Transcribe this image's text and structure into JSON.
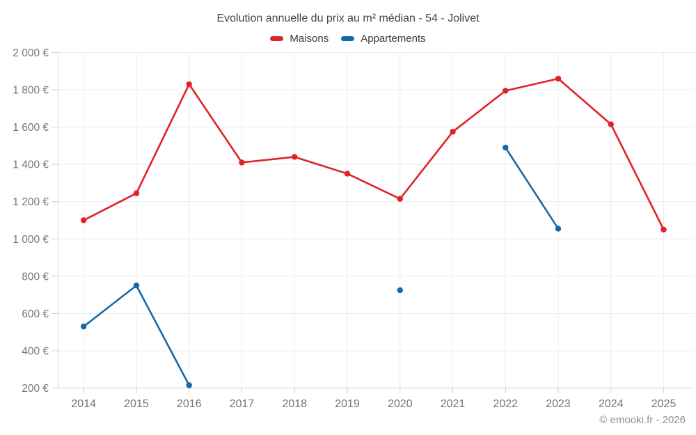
{
  "chart": {
    "title": "Evolution annuelle du prix au m² médian - 54 - Jolivet"
  },
  "footer": {
    "copyright": "© emooki.fr - 2026"
  },
  "colors": {
    "maisons": "#e02228",
    "appartements": "#1568a8",
    "gridline": "#ececec",
    "axis_line": "#d9d9d9",
    "tick": "#cfcfcf",
    "axis_label": "#757575",
    "background": "#ffffff"
  },
  "chart_data": {
    "type": "line",
    "title": "Evolution annuelle du prix au m² médian - 54 - Jolivet",
    "xlabel": "",
    "ylabel": "",
    "categories": [
      "2014",
      "2015",
      "2016",
      "2017",
      "2018",
      "2019",
      "2020",
      "2021",
      "2022",
      "2023",
      "2024",
      "2025"
    ],
    "series": [
      {
        "name": "Maisons",
        "color": "#e02228",
        "values": [
          1100,
          1245,
          1830,
          1410,
          1440,
          1350,
          1215,
          1575,
          1795,
          1860,
          1615,
          1050
        ]
      },
      {
        "name": "Appartements",
        "color": "#1568a8",
        "values": [
          530,
          750,
          215,
          null,
          null,
          null,
          725,
          null,
          1490,
          1055,
          null,
          null
        ]
      }
    ],
    "ylim": [
      200,
      2000
    ],
    "y_ticks": [
      200,
      400,
      600,
      800,
      1000,
      1200,
      1400,
      1600,
      1800,
      2000
    ],
    "y_tick_labels": [
      "200 €",
      "400 €",
      "600 €",
      "800 €",
      "1 000 €",
      "1 200 €",
      "1 400 €",
      "1 600 €",
      "1 800 €",
      "2 000 €"
    ],
    "grid": true,
    "legend_position": "top"
  }
}
